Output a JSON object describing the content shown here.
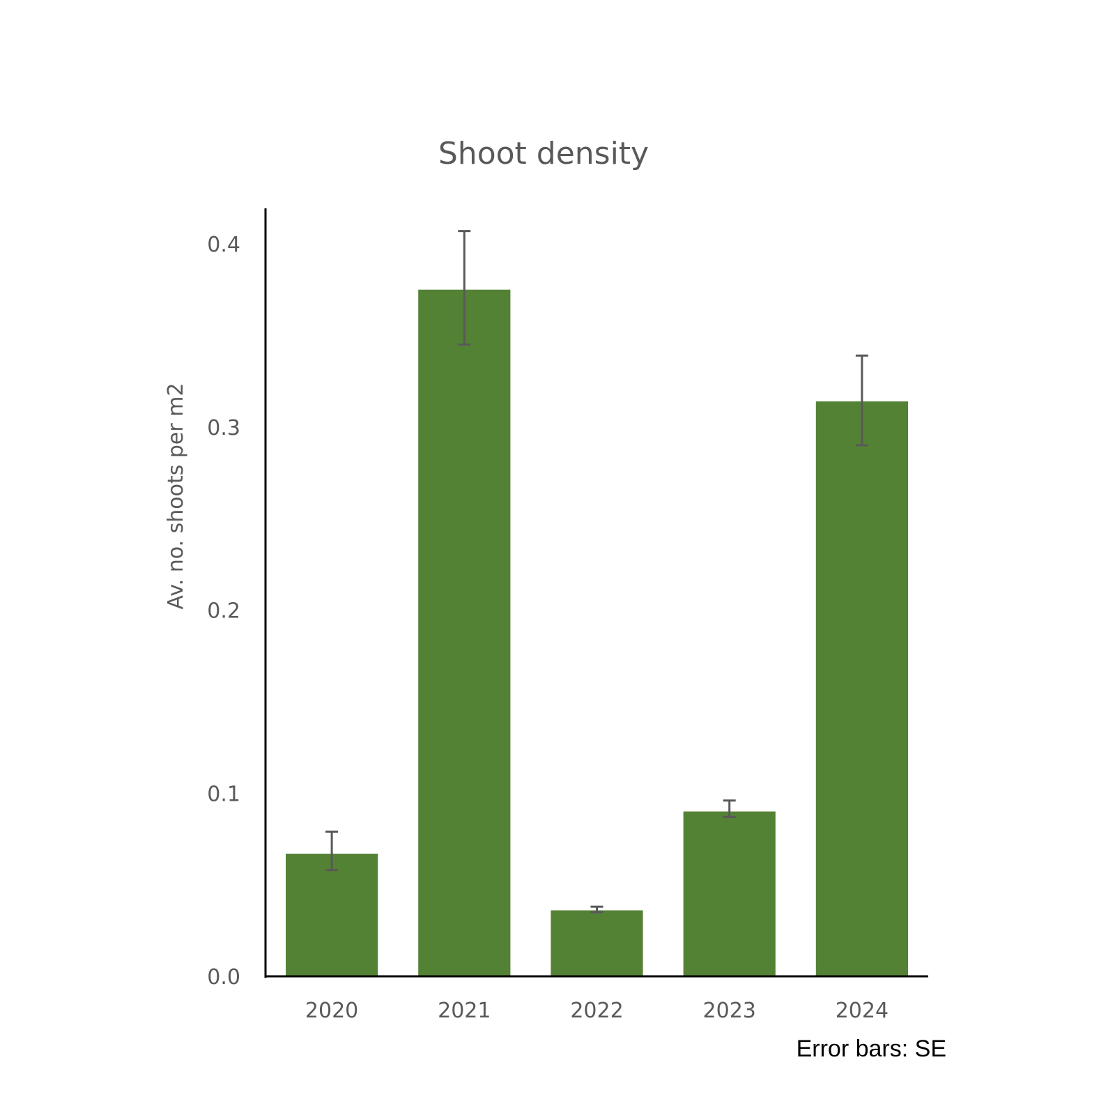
{
  "chart_data": {
    "type": "bar",
    "title": "Shoot density",
    "xlabel": "",
    "ylabel": "Av. no. shoots  per m2",
    "categories": [
      "2020",
      "2021",
      "2022",
      "2023",
      "2024"
    ],
    "values": [
      0.067,
      0.375,
      0.036,
      0.09,
      0.314
    ],
    "error_bars": {
      "type": "SE",
      "lower": [
        0.058,
        0.345,
        0.035,
        0.087,
        0.29
      ],
      "upper": [
        0.079,
        0.407,
        0.038,
        0.096,
        0.339
      ]
    },
    "ylim": [
      0,
      0.42
    ],
    "yticks": [
      "0.0",
      "0.1",
      "0.2",
      "0.3",
      "0.4"
    ],
    "ytick_values": [
      0,
      0.1,
      0.2,
      0.3,
      0.4
    ],
    "grid": false,
    "legend": "none",
    "note": "Error bars: SE",
    "colors": {
      "bar": "#548235",
      "error_bar": "#595959",
      "axis": "#000000",
      "text": "#595959"
    }
  }
}
